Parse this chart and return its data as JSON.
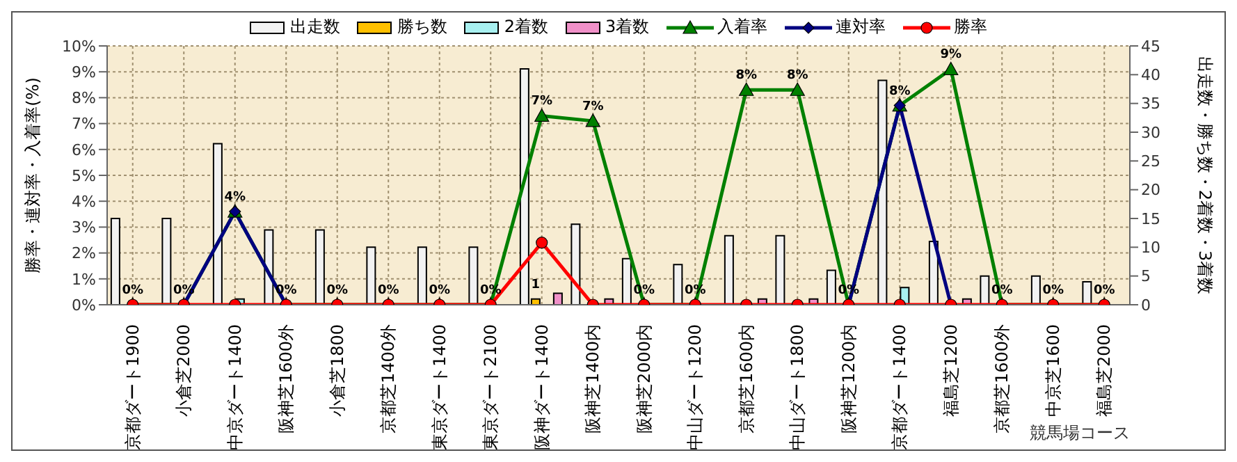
{
  "chart_data": {
    "type": "bar",
    "categories": [
      "京都ダート1900",
      "小倉芝2000",
      "中京ダート1400",
      "阪神芝1600外",
      "小倉芝1800",
      "京都芝1400外",
      "東京ダート1400",
      "東京ダート2100",
      "阪神ダート1400",
      "阪神芝1400内",
      "阪神芝2000内",
      "中山ダート1200",
      "京都芝1600内",
      "中山ダート1800",
      "阪神芝1200内",
      "京都ダート1400",
      "福島芝1200",
      "京都芝1600外",
      "中京芝1600",
      "福島芝2000"
    ],
    "series": [
      {
        "name": "出走数",
        "axis": "y2",
        "color": "#f2f2f2",
        "values": [
          15,
          15,
          28,
          13,
          13,
          10,
          10,
          10,
          41,
          14,
          8,
          7,
          12,
          12,
          6,
          39,
          11,
          5,
          5,
          4
        ]
      },
      {
        "name": "勝ち数",
        "axis": "y2",
        "color": "#ffc000",
        "values": [
          0,
          0,
          0,
          0,
          0,
          0,
          0,
          0,
          1,
          0,
          0,
          0,
          0,
          0,
          0,
          0,
          0,
          0,
          0,
          0
        ],
        "value_labels": [
          null,
          null,
          null,
          null,
          null,
          null,
          null,
          null,
          "1",
          null,
          null,
          null,
          null,
          null,
          null,
          null,
          null,
          null,
          null,
          null
        ]
      },
      {
        "name": "2着数",
        "axis": "y2",
        "color": "#a8f0f0",
        "values": [
          0,
          0,
          1,
          0,
          0,
          0,
          0,
          0,
          0,
          0,
          0,
          0,
          0,
          0,
          0,
          3,
          0,
          0,
          0,
          0
        ]
      },
      {
        "name": "3着数",
        "axis": "y2",
        "color": "#f090c8",
        "values": [
          0,
          0,
          0,
          0,
          0,
          0,
          0,
          0,
          2,
          1,
          0,
          0,
          1,
          1,
          0,
          0,
          1,
          0,
          0,
          0
        ]
      },
      {
        "name": "入着率",
        "type": "line",
        "marker": "triangle",
        "color": "#008000",
        "values": [
          0,
          0,
          3.6,
          0,
          0,
          0,
          0,
          0,
          7.3,
          7.1,
          0,
          0,
          8.3,
          8.3,
          0,
          7.7,
          9.1,
          0,
          0,
          0
        ],
        "value_labels": [
          "0%",
          "0%",
          "4%",
          "0%",
          "0%",
          "0%",
          "0%",
          "0%",
          "7%",
          "7%",
          "0%",
          "0%",
          "8%",
          "8%",
          "0%",
          "8%",
          "9%",
          "0%",
          "0%",
          "0%"
        ]
      },
      {
        "name": "連対率",
        "type": "line",
        "marker": "diamond",
        "color": "#000080",
        "values": [
          null,
          0,
          3.6,
          0,
          null,
          null,
          null,
          null,
          null,
          null,
          null,
          null,
          null,
          null,
          0,
          7.7,
          0,
          null,
          null,
          null
        ]
      },
      {
        "name": "勝率",
        "type": "line",
        "marker": "circle",
        "color": "#ff0000",
        "values": [
          0,
          0,
          0,
          0,
          0,
          0,
          0,
          0,
          2.4,
          0,
          0,
          0,
          0,
          0,
          0,
          0,
          0,
          0,
          0,
          0
        ]
      }
    ],
    "xlabel": "競馬場コース",
    "ylabel": "勝率・連対率・入着率(%)",
    "y2label": "出走数・勝ち数・2着数・3着数",
    "ylim": [
      0,
      10
    ],
    "yticks": [
      {
        "value": 0,
        "label": "0%"
      },
      {
        "value": 1,
        "label": "1%"
      },
      {
        "value": 2,
        "label": "2%"
      },
      {
        "value": 3,
        "label": "3%"
      },
      {
        "value": 4,
        "label": "4%"
      },
      {
        "value": 5,
        "label": "5%"
      },
      {
        "value": 6,
        "label": "6%"
      },
      {
        "value": 7,
        "label": "7%"
      },
      {
        "value": 8,
        "label": "8%"
      },
      {
        "value": 9,
        "label": "9%"
      },
      {
        "value": 10,
        "label": "10%"
      }
    ],
    "y2lim": [
      0,
      45
    ],
    "y2ticks": [
      0,
      5,
      10,
      15,
      20,
      25,
      30,
      35,
      40,
      45
    ],
    "grid": true,
    "legend": "top"
  }
}
